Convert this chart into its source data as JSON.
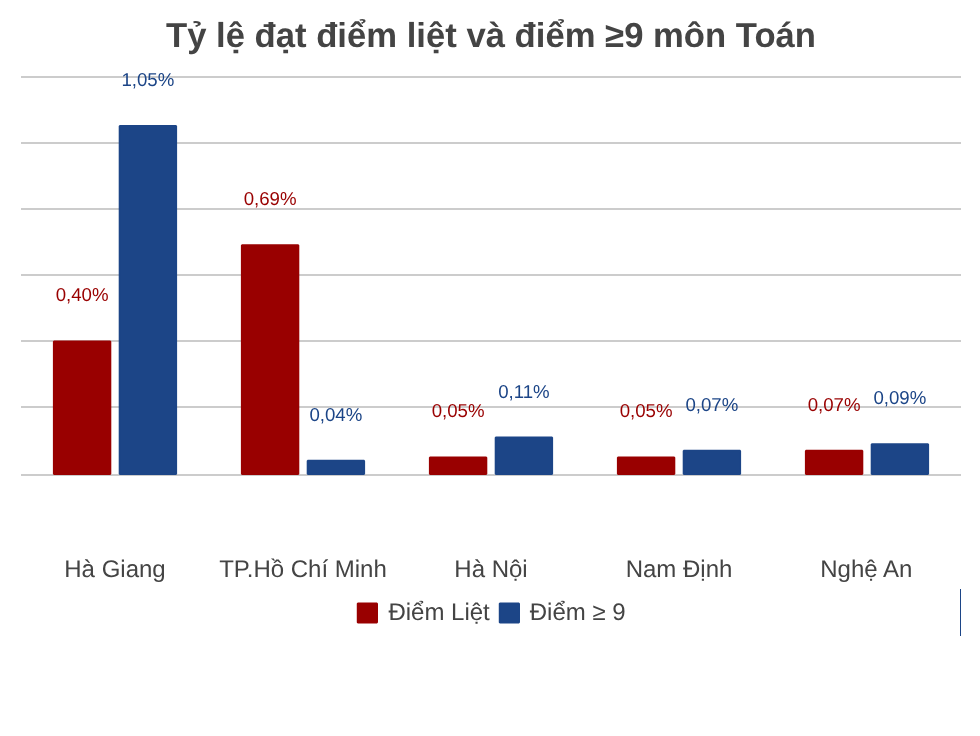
{
  "chart_data": {
    "type": "bar",
    "title": "Tỷ lệ đạt điểm liệt và điểm ≥9 môn Toán",
    "categories": [
      "Hà Giang",
      "TP.Hồ Chí Minh",
      "Hà Nội",
      "Nam Định",
      "Nghệ An"
    ],
    "series": [
      {
        "name": "Điểm Liệt",
        "color": "#990000",
        "values": [
          0.4,
          0.69,
          0.05,
          0.05,
          0.07
        ],
        "value_labels": [
          "0,40%",
          "0,69%",
          "0,05%",
          "0,05%",
          "0,07%"
        ]
      },
      {
        "name": "Điểm ≥ 9",
        "color": "#1c4587",
        "values": [
          1.05,
          0.04,
          0.11,
          0.07,
          0.09
        ],
        "value_labels": [
          "1,05%",
          "0,04%",
          "0,11%",
          "0,07%",
          "0,09%"
        ]
      }
    ],
    "tick_labels": "x",
    "grid": "y",
    "legend": "bottom"
  }
}
